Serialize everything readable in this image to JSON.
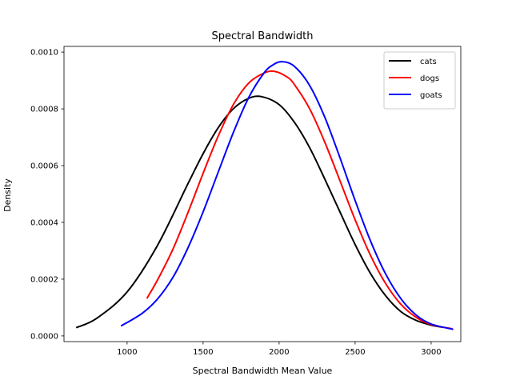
{
  "chart_data": {
    "type": "line",
    "title": "Spectral Bandwidth",
    "xlabel": "Spectral Bandwidth Mean Value",
    "ylabel": "Density",
    "xlim": [
      585,
      3195
    ],
    "ylim": [
      -2e-05,
      0.00102
    ],
    "xticks": [
      1000,
      1500,
      2000,
      2500,
      3000
    ],
    "xtick_labels": [
      "1000",
      "1500",
      "2000",
      "2500",
      "3000"
    ],
    "yticks": [
      0.0,
      0.0002,
      0.0004,
      0.0006,
      0.0008,
      0.001
    ],
    "ytick_labels": [
      "0.0000",
      "0.0002",
      "0.0004",
      "0.0006",
      "0.0008",
      "0.0010"
    ],
    "grid": false,
    "legend_position": "top-right",
    "series": [
      {
        "name": "cats",
        "color": "#000000",
        "x_range": [
          665,
          3080
        ],
        "values": [
          [
            665,
            2.9e-05
          ],
          [
            800,
            6.2e-05
          ],
          [
            1000,
            0.000155
          ],
          [
            1200,
            0.000319
          ],
          [
            1400,
            0.000536
          ],
          [
            1500,
            0.000642
          ],
          [
            1600,
            0.000734
          ],
          [
            1700,
            0.000801
          ],
          [
            1800,
            0.000837
          ],
          [
            1885,
            0.000843
          ],
          [
            2000,
            0.000815
          ],
          [
            2100,
            0.000753
          ],
          [
            2200,
            0.000664
          ],
          [
            2300,
            0.000553
          ],
          [
            2400,
            0.000437
          ],
          [
            2500,
            0.000322
          ],
          [
            2600,
            0.000221
          ],
          [
            2700,
            0.000142
          ],
          [
            2800,
            8.6e-05
          ],
          [
            2900,
            5.5e-05
          ],
          [
            3000,
            3.8e-05
          ],
          [
            3080,
            3e-05
          ]
        ]
      },
      {
        "name": "dogs",
        "color": "#ff0000",
        "x_range": [
          1130,
          3140
        ],
        "values": [
          [
            1130,
            0.000132
          ],
          [
            1200,
            0.000197
          ],
          [
            1300,
            0.000304
          ],
          [
            1400,
            0.000434
          ],
          [
            1500,
            0.000573
          ],
          [
            1600,
            0.000705
          ],
          [
            1700,
            0.000816
          ],
          [
            1800,
            0.000891
          ],
          [
            1900,
            0.000926
          ],
          [
            1970,
            0.000932
          ],
          [
            2050,
            0.000913
          ],
          [
            2100,
            0.000886
          ],
          [
            2200,
            0.000801
          ],
          [
            2300,
            0.000683
          ],
          [
            2400,
            0.000547
          ],
          [
            2500,
            0.000409
          ],
          [
            2600,
            0.000285
          ],
          [
            2700,
            0.000185
          ],
          [
            2800,
            0.000112
          ],
          [
            2900,
            6.6e-05
          ],
          [
            3000,
            4e-05
          ],
          [
            3140,
            2.5e-05
          ]
        ]
      },
      {
        "name": "goats",
        "color": "#0000ff",
        "x_range": [
          960,
          3145
        ],
        "values": [
          [
            960,
            3.5e-05
          ],
          [
            1100,
            8e-05
          ],
          [
            1200,
            0.00013
          ],
          [
            1300,
            0.000205
          ],
          [
            1400,
            0.00031
          ],
          [
            1500,
            0.000437
          ],
          [
            1600,
            0.000578
          ],
          [
            1700,
            0.000718
          ],
          [
            1800,
            0.00084
          ],
          [
            1900,
            0.000926
          ],
          [
            1960,
            0.000955
          ],
          [
            2020,
            0.000966
          ],
          [
            2100,
            0.00095
          ],
          [
            2200,
            0.000883
          ],
          [
            2300,
            0.000771
          ],
          [
            2400,
            0.000628
          ],
          [
            2500,
            0.000477
          ],
          [
            2600,
            0.000336
          ],
          [
            2700,
            0.000219
          ],
          [
            2800,
            0.000132
          ],
          [
            2900,
            7.4e-05
          ],
          [
            3000,
            4.2e-05
          ],
          [
            3145,
            2.3e-05
          ]
        ]
      }
    ]
  }
}
